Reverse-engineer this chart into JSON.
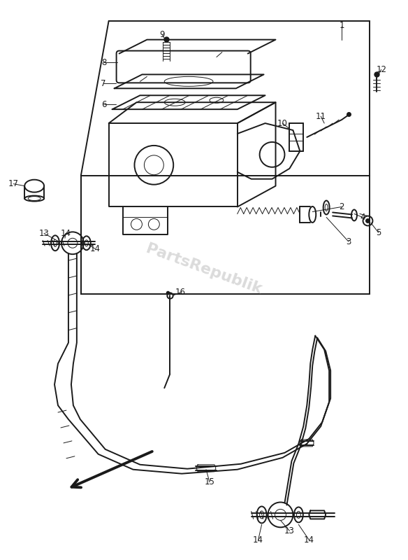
{
  "bg_color": "#ffffff",
  "line_color": "#1a1a1a",
  "watermark_text": "PartsRepublik",
  "watermark_color": "#c8c8c8",
  "watermark_fontsize": 16,
  "figsize": [
    5.84,
    8.0
  ],
  "dpi": 100
}
